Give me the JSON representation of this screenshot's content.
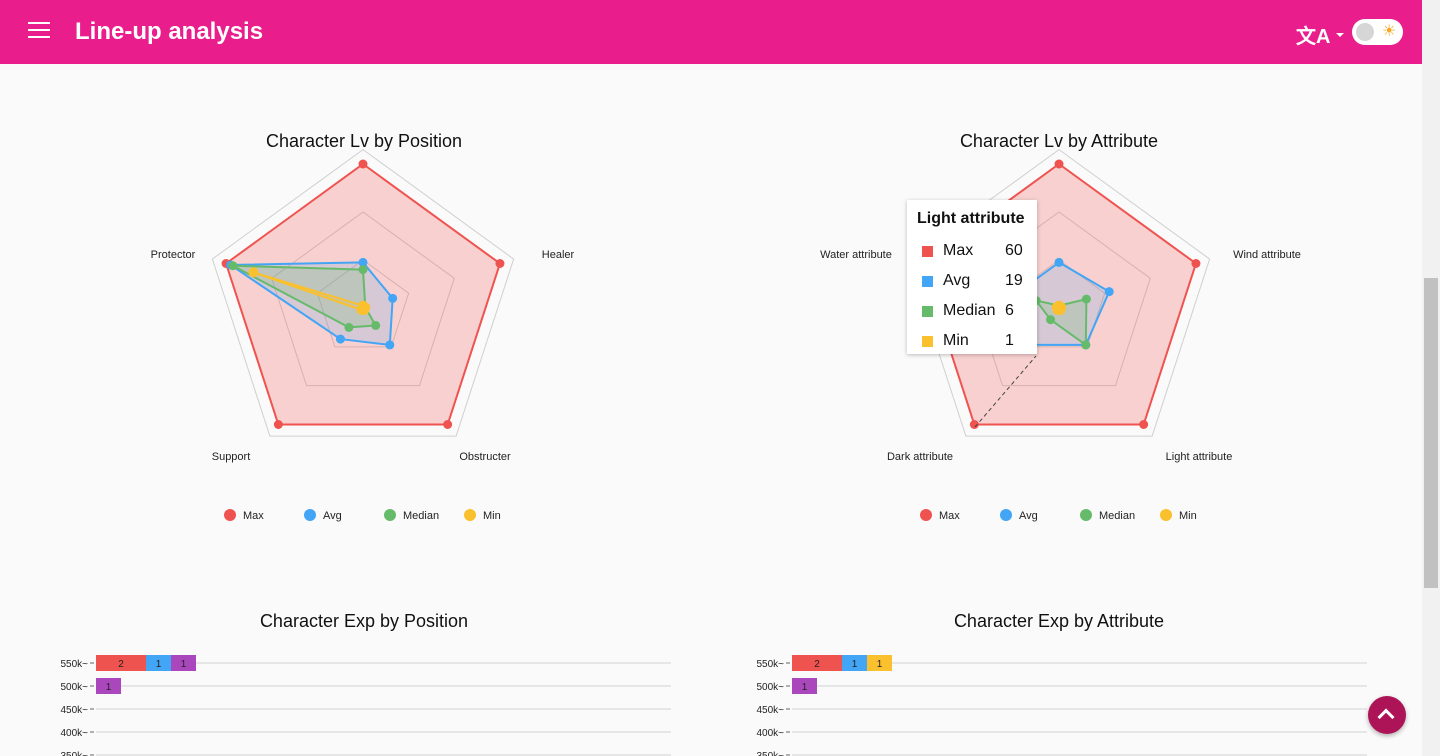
{
  "appbar": {
    "title": "Line-up analysis",
    "menu_icon": "hamburger-menu-icon",
    "lang_icon": "translate-icon",
    "theme_icon": "sun-icon",
    "theme_glyph": "☀",
    "lang_glyph": "文A"
  },
  "colors": {
    "appbar": "#e91e8c",
    "max": "#ef5350",
    "avg": "#42a5f5",
    "median": "#66bb6a",
    "min": "#fbc02d",
    "fab": "#ad1457"
  },
  "radar_charts": [
    {
      "title": "Character Lv by Position",
      "axes": [
        "Support",
        "Protector",
        "Healer",
        "Obstructer"
      ],
      "legend": [
        "Max",
        "Avg",
        "Median",
        "Min"
      ]
    },
    {
      "title": "Character Lv by Attribute",
      "axes": [
        "Dark attribute",
        "Water attribute",
        "Wind attribute",
        "Light attribute"
      ],
      "legend": [
        "Max",
        "Avg",
        "Median",
        "Min"
      ]
    }
  ],
  "tooltip": {
    "title": "Light attribute",
    "rows": [
      {
        "name": "Max",
        "value": "60"
      },
      {
        "name": "Avg",
        "value": "19"
      },
      {
        "name": "Median",
        "value": "6"
      },
      {
        "name": "Min",
        "value": "1"
      }
    ]
  },
  "bar_charts": [
    {
      "title": "Character Exp by Position"
    },
    {
      "title": "Character Exp by Attribute"
    }
  ],
  "chart_data": [
    {
      "type": "radar",
      "title": "Character Lv by Position",
      "categories": [
        "",
        "Protector",
        "Healer",
        "Obstructer",
        "Support"
      ],
      "rmax": 60,
      "series": [
        {
          "name": "Max",
          "values": [
            60,
            60,
            60,
            60,
            60
          ]
        },
        {
          "name": "Avg",
          "values": [
            19,
            13,
            19,
            16,
            58
          ]
        },
        {
          "name": "Median",
          "values": [
            16,
            1,
            9,
            10,
            57
          ]
        },
        {
          "name": "Min",
          "values": [
            1,
            1,
            1,
            1,
            48
          ]
        }
      ]
    },
    {
      "type": "radar",
      "title": "Character Lv by Attribute",
      "categories": [
        "",
        "Water attribute",
        "Wind attribute",
        "Light attribute",
        "Dark attribute"
      ],
      "rmax": 60,
      "series": [
        {
          "name": "Max",
          "values": [
            60,
            60,
            60,
            60,
            60
          ]
        },
        {
          "name": "Avg",
          "values": [
            19,
            22,
            19,
            19,
            19
          ]
        },
        {
          "name": "Median",
          "values": [
            1,
            12,
            19,
            6,
            10
          ]
        },
        {
          "name": "Min",
          "values": [
            1,
            1,
            1,
            1,
            1
          ]
        }
      ]
    },
    {
      "type": "bar",
      "title": "Character Exp by Position",
      "categories": [
        "550k~",
        "500k~",
        "450k~",
        "400k~",
        "350k~"
      ],
      "segments": [
        [
          {
            "value": 2,
            "color": "#ef5350"
          },
          {
            "value": 1,
            "color": "#42a5f5"
          },
          {
            "value": 1,
            "color": "#ab47bc"
          }
        ],
        [
          {
            "value": 1,
            "color": "#ab47bc"
          }
        ],
        [],
        [],
        []
      ]
    },
    {
      "type": "bar",
      "title": "Character Exp by Attribute",
      "categories": [
        "550k~",
        "500k~",
        "450k~",
        "400k~",
        "350k~"
      ],
      "segments": [
        [
          {
            "value": 2,
            "color": "#ef5350"
          },
          {
            "value": 1,
            "color": "#42a5f5"
          },
          {
            "value": 1,
            "color": "#fbc02d"
          }
        ],
        [
          {
            "value": 1,
            "color": "#ab47bc"
          }
        ],
        [],
        [],
        []
      ]
    }
  ],
  "scroll_top_icon": "chevron-up-icon"
}
